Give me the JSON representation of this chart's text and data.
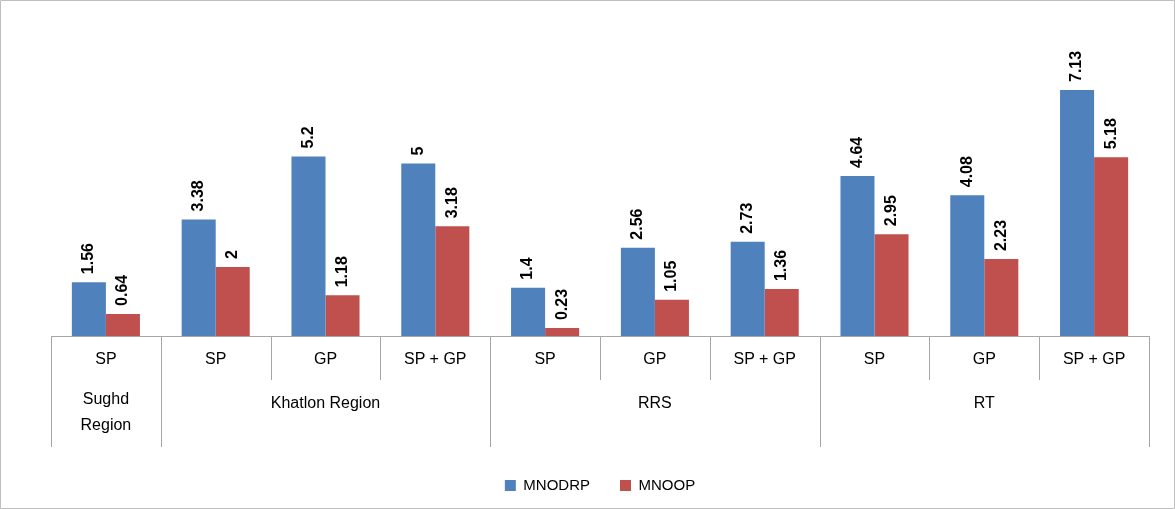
{
  "chart_data": {
    "type": "bar",
    "categories": [
      "SP",
      "SP",
      "GP",
      "SP + GP",
      "SP",
      "GP",
      "SP + GP",
      "SP",
      "GP",
      "SP + GP"
    ],
    "series": [
      {
        "name": "MNODRP",
        "color": "#4f81bd",
        "values": [
          1.56,
          3.38,
          5.2,
          5,
          1.4,
          2.56,
          2.73,
          4.64,
          4.08,
          7.13
        ]
      },
      {
        "name": "MNOOP",
        "color": "#c0504d",
        "values": [
          0.64,
          2,
          1.18,
          3.18,
          0.23,
          1.05,
          1.36,
          2.95,
          2.23,
          5.18
        ]
      }
    ],
    "annotations": [
      "Sughd Region",
      "Khatlon Region",
      "RRS",
      "RT"
    ],
    "data_labels": true,
    "legend": "bottom",
    "grid": false
  }
}
